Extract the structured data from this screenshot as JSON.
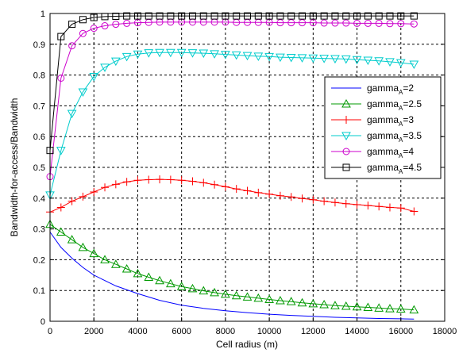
{
  "chart_data": {
    "type": "line",
    "xlabel": "Cell radius (m)",
    "ylabel": "Bandwidth-for-access/Bandwidth",
    "xlim": [
      0,
      18000
    ],
    "ylim": [
      0,
      1
    ],
    "xticks": [
      0,
      2000,
      4000,
      6000,
      8000,
      10000,
      12000,
      14000,
      16000,
      18000
    ],
    "yticks": [
      0,
      0.1,
      0.2,
      0.3,
      0.4,
      0.5,
      0.6,
      0.7,
      0.8,
      0.9,
      1
    ],
    "grid": true,
    "legend_position": "right",
    "series": [
      {
        "name": "gamma_A=2",
        "legend_prefix": "gamma",
        "legend_sub": "A",
        "legend_suffix": "=2",
        "color": "#0000ff",
        "marker": "none",
        "x": [
          0,
          500,
          1000,
          1500,
          2000,
          3000,
          4000,
          5000,
          6000,
          7000,
          8000,
          9000,
          10000,
          11000,
          12000,
          13000,
          14000,
          15000,
          16000,
          16600
        ],
        "y": [
          0.29,
          0.24,
          0.205,
          0.175,
          0.15,
          0.115,
          0.09,
          0.068,
          0.052,
          0.042,
          0.034,
          0.028,
          0.023,
          0.019,
          0.016,
          0.013,
          0.011,
          0.009,
          0.008,
          0.007
        ]
      },
      {
        "name": "gamma_A=2.5",
        "legend_prefix": "gamma",
        "legend_sub": "A",
        "legend_suffix": "=2.5",
        "color": "#009900",
        "marker": "triangle-up",
        "x": [
          0,
          500,
          1000,
          1500,
          2000,
          2500,
          3000,
          3500,
          4000,
          4500,
          5000,
          5500,
          6000,
          6500,
          7000,
          7500,
          8000,
          8500,
          9000,
          9500,
          10000,
          10500,
          11000,
          11500,
          12000,
          12500,
          13000,
          13500,
          14000,
          14500,
          15000,
          15500,
          16000,
          16600
        ],
        "y": [
          0.315,
          0.29,
          0.265,
          0.24,
          0.22,
          0.2,
          0.185,
          0.17,
          0.155,
          0.143,
          0.132,
          0.122,
          0.113,
          0.106,
          0.099,
          0.093,
          0.088,
          0.083,
          0.079,
          0.075,
          0.071,
          0.067,
          0.064,
          0.06,
          0.057,
          0.054,
          0.051,
          0.049,
          0.047,
          0.045,
          0.043,
          0.041,
          0.04,
          0.037
        ]
      },
      {
        "name": "gamma_A=3",
        "legend_prefix": "gamma",
        "legend_sub": "A",
        "legend_suffix": "=3",
        "color": "#ff0000",
        "marker": "plus",
        "x": [
          0,
          500,
          1000,
          1500,
          2000,
          2500,
          3000,
          3500,
          4000,
          4500,
          5000,
          5500,
          6000,
          6500,
          7000,
          7500,
          8000,
          8500,
          9000,
          9500,
          10000,
          10500,
          11000,
          11500,
          12000,
          12500,
          13000,
          13500,
          14000,
          14500,
          15000,
          15500,
          16000,
          16600
        ],
        "y": [
          0.355,
          0.37,
          0.39,
          0.405,
          0.42,
          0.435,
          0.445,
          0.453,
          0.458,
          0.46,
          0.461,
          0.46,
          0.458,
          0.455,
          0.45,
          0.444,
          0.437,
          0.43,
          0.424,
          0.418,
          0.413,
          0.408,
          0.404,
          0.399,
          0.395,
          0.39,
          0.386,
          0.382,
          0.379,
          0.376,
          0.373,
          0.37,
          0.368,
          0.357
        ]
      },
      {
        "name": "gamma_A=3.5",
        "legend_prefix": "gamma",
        "legend_sub": "A",
        "legend_suffix": "=3.5",
        "color": "#00cccc",
        "marker": "triangle-down",
        "x": [
          0,
          500,
          1000,
          1500,
          2000,
          2500,
          3000,
          3500,
          4000,
          4500,
          5000,
          5500,
          6000,
          6500,
          7000,
          7500,
          8000,
          8500,
          9000,
          9500,
          10000,
          10500,
          11000,
          11500,
          12000,
          12500,
          13000,
          13500,
          14000,
          14500,
          15000,
          15500,
          16000,
          16600
        ],
        "y": [
          0.41,
          0.555,
          0.675,
          0.745,
          0.795,
          0.825,
          0.845,
          0.86,
          0.868,
          0.872,
          0.873,
          0.873,
          0.873,
          0.872,
          0.871,
          0.869,
          0.867,
          0.865,
          0.863,
          0.861,
          0.86,
          0.858,
          0.857,
          0.856,
          0.855,
          0.854,
          0.853,
          0.852,
          0.85,
          0.848,
          0.846,
          0.843,
          0.84,
          0.835
        ]
      },
      {
        "name": "gamma_A=4",
        "legend_prefix": "gamma",
        "legend_sub": "A",
        "legend_suffix": "=4",
        "color": "#cc00cc",
        "marker": "circle",
        "x": [
          0,
          500,
          1000,
          1500,
          2000,
          2500,
          3000,
          3500,
          4000,
          4500,
          5000,
          5500,
          6000,
          6500,
          7000,
          7500,
          8000,
          8500,
          9000,
          9500,
          10000,
          10500,
          11000,
          11500,
          12000,
          12500,
          13000,
          13500,
          14000,
          14500,
          15000,
          15500,
          16000,
          16600
        ],
        "y": [
          0.47,
          0.79,
          0.895,
          0.935,
          0.952,
          0.96,
          0.965,
          0.968,
          0.97,
          0.971,
          0.972,
          0.972,
          0.972,
          0.972,
          0.972,
          0.972,
          0.972,
          0.971,
          0.971,
          0.971,
          0.971,
          0.97,
          0.97,
          0.97,
          0.97,
          0.969,
          0.969,
          0.969,
          0.968,
          0.968,
          0.968,
          0.967,
          0.967,
          0.966
        ]
      },
      {
        "name": "gamma_A=4.5",
        "legend_prefix": "gamma",
        "legend_sub": "A",
        "legend_suffix": "=4.5",
        "color": "#000000",
        "marker": "square",
        "x": [
          0,
          500,
          1000,
          1500,
          2000,
          2500,
          3000,
          3500,
          4000,
          4500,
          5000,
          5500,
          6000,
          6500,
          7000,
          7500,
          8000,
          8500,
          9000,
          9500,
          10000,
          10500,
          11000,
          11500,
          12000,
          12500,
          13000,
          13500,
          14000,
          14500,
          15000,
          15500,
          16000,
          16600
        ],
        "y": [
          0.555,
          0.925,
          0.965,
          0.98,
          0.987,
          0.99,
          0.991,
          0.992,
          0.992,
          0.992,
          0.992,
          0.992,
          0.992,
          0.992,
          0.992,
          0.992,
          0.992,
          0.992,
          0.992,
          0.992,
          0.992,
          0.992,
          0.992,
          0.992,
          0.992,
          0.992,
          0.992,
          0.992,
          0.992,
          0.992,
          0.992,
          0.992,
          0.992,
          0.992
        ]
      }
    ]
  }
}
